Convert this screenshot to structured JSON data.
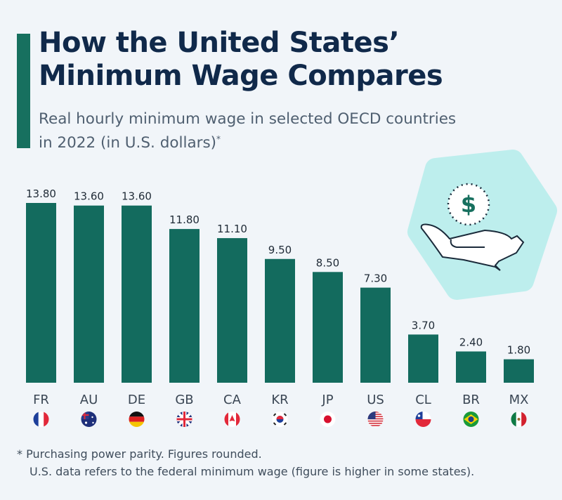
{
  "chart_data": {
    "type": "bar",
    "title": "How the United States' Minimum Wage Compares",
    "subtitle_line1": "Real hourly minimum wage in selected OECD countries",
    "subtitle_line2": "in 2022 (in U.S. dollars)",
    "subtitle_mark": "*",
    "categories": [
      "FR",
      "AU",
      "DE",
      "GB",
      "CA",
      "KR",
      "JP",
      "US",
      "CL",
      "BR",
      "MX"
    ],
    "values": [
      13.8,
      13.6,
      13.6,
      11.8,
      11.1,
      9.5,
      8.5,
      7.3,
      3.7,
      2.4,
      1.8
    ],
    "data_labels": [
      "13.80",
      "13.60",
      "13.60",
      "11.80",
      "11.10",
      "9.50",
      "8.50",
      "7.30",
      "3.70",
      "2.40",
      "1.80"
    ],
    "ylim": [
      0,
      14
    ],
    "grid": false,
    "bar_color": "#136b5e",
    "xlabel": "",
    "ylabel": ""
  },
  "title_line1": "How the United States’",
  "title_line2": "Minimum Wage Compares",
  "footnote_line1": "* Purchasing power parity. Figures rounded.",
  "footnote_line2": "U.S. data refers to the federal minimum wage (figure is higher in some states).",
  "illustration": {
    "icon": "hand-holding-dollar-icon",
    "symbol": "$"
  }
}
